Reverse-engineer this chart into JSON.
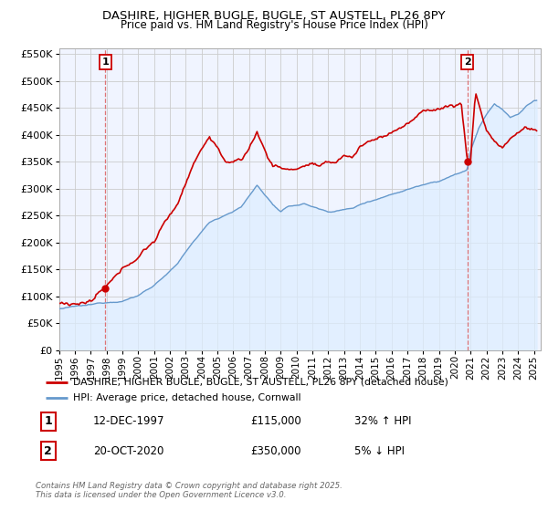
{
  "title1": "DASHIRE, HIGHER BUGLE, BUGLE, ST AUSTELL, PL26 8PY",
  "title2": "Price paid vs. HM Land Registry's House Price Index (HPI)",
  "legend_label_red": "DASHIRE, HIGHER BUGLE, BUGLE, ST AUSTELL, PL26 8PY (detached house)",
  "legend_label_blue": "HPI: Average price, detached house, Cornwall",
  "annotation1_date": "12-DEC-1997",
  "annotation1_price": "£115,000",
  "annotation1_hpi": "32% ↑ HPI",
  "annotation1_year": 1997.92,
  "annotation1_value": 115000,
  "annotation2_date": "20-OCT-2020",
  "annotation2_price": "£350,000",
  "annotation2_hpi": "5% ↓ HPI",
  "annotation2_year": 2020.79,
  "annotation2_value": 350000,
  "footer1": "Contains HM Land Registry data © Crown copyright and database right 2025.",
  "footer2": "This data is licensed under the Open Government Licence v3.0.",
  "ylim_max": 560000,
  "red_color": "#cc0000",
  "blue_color": "#6699cc",
  "blue_fill_color": "#ddeeff",
  "dashed_color": "#dd6666",
  "background_color": "#ffffff",
  "grid_color": "#cccccc",
  "plot_bg_color": "#f0f4ff"
}
